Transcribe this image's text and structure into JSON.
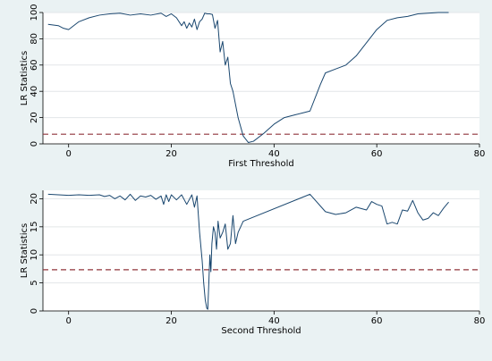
{
  "theme": {
    "background": "#eaf2f3",
    "plot_background": "#ffffff",
    "line_color": "#1a476f",
    "threshold_color": "#90353b",
    "grid_color": "#e3e6e8"
  },
  "chart_data": [
    {
      "type": "line",
      "xlabel": "First Threshold",
      "ylabel": "LR Statistics",
      "xlim": [
        -5,
        80
      ],
      "ylim": [
        0,
        100
      ],
      "xticks": [
        0,
        20,
        40,
        60,
        80
      ],
      "yticks": [
        0,
        20,
        40,
        60,
        80,
        100
      ],
      "xtick_labels": [
        "0",
        "20",
        "40",
        "60",
        "80"
      ],
      "ytick_labels": [
        "0",
        "20",
        "40",
        "60",
        "80",
        "100"
      ],
      "grid": "horizontal",
      "reference_line": {
        "y": 7.35,
        "style": "dashed"
      },
      "series": [
        {
          "x": [
            -4,
            -2,
            -1,
            0,
            2,
            4,
            6,
            8,
            10,
            12,
            14,
            16,
            18,
            19,
            20,
            21,
            22,
            22.5,
            23,
            23.5,
            24,
            24.5,
            25,
            25.5,
            26,
            26.5,
            27,
            27.5,
            28,
            28.5,
            29,
            29.5,
            30,
            30.5,
            31,
            31.5,
            32,
            33,
            34,
            35,
            36,
            38,
            40,
            42,
            44,
            46,
            47,
            49,
            50,
            52,
            54,
            56,
            58,
            60,
            62,
            64,
            66,
            68,
            70,
            72,
            74
          ],
          "y": [
            91,
            90,
            88,
            87,
            93,
            96,
            98,
            99,
            99.5,
            98,
            99,
            98,
            99.5,
            97,
            99,
            96,
            90,
            93,
            88,
            92,
            89,
            95,
            87,
            93,
            95,
            99.5,
            99,
            99,
            98.5,
            88,
            94,
            70,
            78,
            60,
            66,
            46,
            40,
            20,
            6,
            1,
            2,
            8,
            15,
            20,
            22,
            24,
            25,
            45,
            54,
            57,
            60,
            67,
            77,
            87,
            94,
            96,
            97,
            99,
            99.5,
            100,
            100
          ]
        }
      ]
    },
    {
      "type": "line",
      "xlabel": "Second Threshold",
      "ylabel": "LR Statistics",
      "xlim": [
        -5,
        80
      ],
      "ylim": [
        0,
        21.5
      ],
      "xticks": [
        0,
        20,
        40,
        60,
        80
      ],
      "yticks": [
        0,
        5,
        10,
        15,
        20
      ],
      "xtick_labels": [
        "0",
        "20",
        "40",
        "60",
        "80"
      ],
      "ytick_labels": [
        "0",
        "5",
        "10",
        "15",
        "20"
      ],
      "grid": "horizontal",
      "reference_line": {
        "y": 7.35,
        "style": "dashed"
      },
      "series": [
        {
          "x": [
            -4,
            -2,
            0,
            2,
            4,
            6,
            7,
            8,
            9,
            10,
            11,
            12,
            13,
            14,
            15,
            16,
            17,
            18,
            18.5,
            19,
            19.5,
            20,
            21,
            22,
            23,
            24,
            24.5,
            25,
            25.5,
            26,
            26.3,
            26.6,
            26.9,
            27.1,
            27.3,
            27.5,
            27.7,
            27.9,
            28.2,
            28.5,
            28.8,
            29.1,
            29.5,
            30,
            30.5,
            31,
            31.5,
            32,
            32.5,
            33,
            33.5,
            34,
            47,
            50,
            52,
            54,
            56,
            58,
            59,
            60,
            61,
            62,
            63,
            64,
            65,
            66,
            67,
            68,
            69,
            70,
            71,
            72,
            73,
            74
          ],
          "y": [
            20.8,
            20.7,
            20.6,
            20.7,
            20.6,
            20.7,
            20.4,
            20.6,
            20,
            20.5,
            19.8,
            20.8,
            19.7,
            20.5,
            20.3,
            20.6,
            19.9,
            20.5,
            19,
            20.7,
            19.5,
            20.7,
            19.8,
            20.7,
            19,
            20.7,
            18.5,
            20.5,
            14,
            9,
            5,
            2,
            0.5,
            0.3,
            5,
            10,
            7,
            12,
            15,
            14,
            11,
            16,
            13,
            14,
            15.5,
            11,
            12,
            17,
            12,
            14,
            15,
            16,
            20.8,
            17.7,
            17.2,
            17.5,
            18.5,
            18,
            19.5,
            19,
            18.7,
            15.5,
            15.8,
            15.5,
            18,
            17.8,
            19.7,
            17.5,
            16.2,
            16.5,
            17.5,
            17,
            18.3,
            19.4
          ]
        }
      ]
    }
  ]
}
